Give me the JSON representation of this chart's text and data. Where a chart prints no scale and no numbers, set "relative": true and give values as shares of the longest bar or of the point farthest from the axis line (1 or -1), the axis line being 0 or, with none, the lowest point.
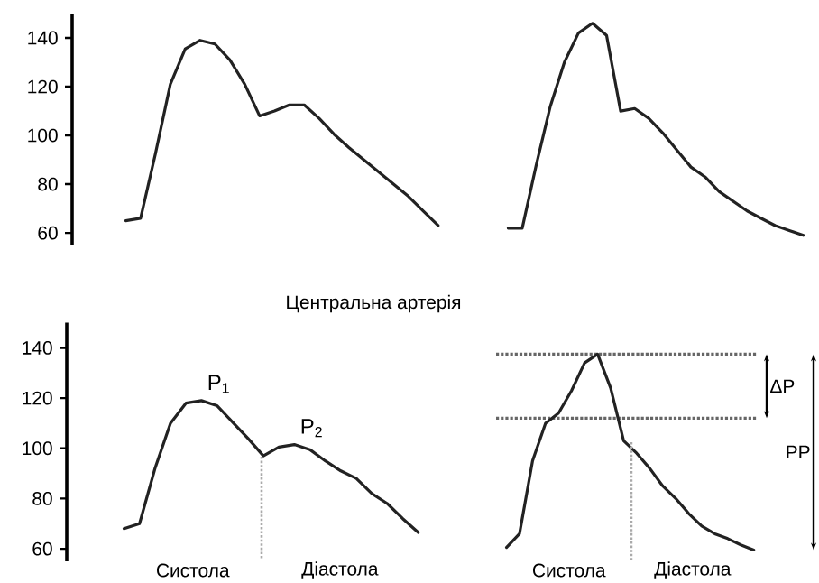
{
  "chart_data": [
    {
      "type": "line",
      "categories": [
        null,
        null,
        null,
        null,
        null,
        null,
        null,
        null,
        null,
        null,
        null,
        null,
        null,
        null,
        null,
        null,
        null,
        null,
        null,
        null,
        null,
        null
      ],
      "values": [
        65,
        66,
        92.6,
        121,
        135.5,
        139,
        137.5,
        131,
        121,
        108,
        110,
        112.5,
        112.5,
        107,
        100.5,
        95,
        90,
        85,
        80,
        75,
        69,
        63
      ],
      "color": "#222222",
      "ylim": [
        55,
        150
      ],
      "yticks": [
        60,
        80,
        100,
        120,
        140
      ],
      "tick_labels": "y"
    },
    {
      "type": "line",
      "categories": [
        null,
        null,
        null,
        null,
        null,
        null,
        null,
        null,
        null,
        null,
        null,
        null,
        null,
        null,
        null,
        null,
        null,
        null,
        null,
        null,
        null,
        null
      ],
      "values": [
        0.034,
        0.034,
        0.333,
        0.609,
        0.816,
        0.954,
        1,
        0.943,
        0.586,
        0.598,
        0.552,
        0.483,
        0.402,
        0.322,
        0.276,
        0.207,
        0.161,
        0.115,
        0.08,
        0.046,
        0.023,
        0
      ],
      "color": "#222222",
      "relative": true,
      "tick_labels": false
    },
    {
      "type": "line",
      "title": "Центральна артерія",
      "categories": [
        null,
        null,
        null,
        null,
        null,
        null,
        null,
        null,
        null,
        null,
        null,
        null,
        null,
        null,
        null,
        null,
        null,
        null,
        null,
        null
      ],
      "values": [
        68,
        70,
        92,
        110,
        118,
        119,
        117,
        110.5,
        104,
        97,
        100.5,
        101.5,
        99.5,
        95,
        91,
        88,
        82,
        78,
        72,
        66.5
      ],
      "color": "#222222",
      "ylim": [
        55,
        150
      ],
      "yticks": [
        60,
        80,
        100,
        120,
        140
      ],
      "tick_labels": "y",
      "annotations": [
        {
          "text": "P$_{1}$",
          "y": 119
        },
        {
          "text": "P$_{2}$",
          "y": 101.5
        },
        "Систола",
        "Діастола"
      ]
    },
    {
      "type": "line",
      "categories": [
        null,
        null,
        null,
        null,
        null,
        null,
        null,
        null,
        null,
        null,
        null,
        null,
        null,
        null,
        null,
        null,
        null,
        null,
        null,
        null
      ],
      "values": [
        0.013,
        0.083,
        0.455,
        0.647,
        0.699,
        0.814,
        0.955,
        1,
        0.827,
        0.558,
        0.494,
        0.417,
        0.327,
        0.263,
        0.186,
        0.122,
        0.083,
        0.058,
        0.026,
        0
      ],
      "color": "#222222",
      "relative": true,
      "tick_labels": false,
      "ref_lines": [
        {
          "axis": "y",
          "value": 1,
          "color": "#666666",
          "line_style": "dotted"
        },
        {
          "axis": "y",
          "value": 0.673,
          "color": "#666666",
          "line_style": "dotted"
        }
      ],
      "annotations": [
        "Систола",
        "Діастола",
        "ΔP",
        "PP"
      ]
    }
  ]
}
